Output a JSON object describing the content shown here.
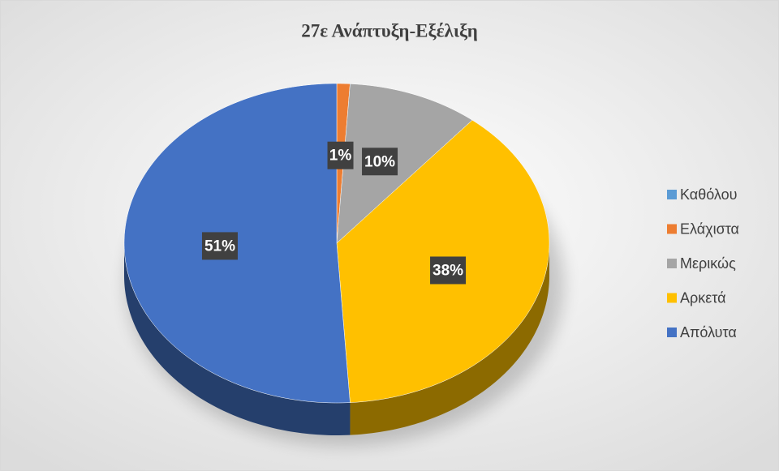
{
  "chart_data": {
    "type": "pie",
    "title": "27ε Ανάπτυξη-Εξέλιξη",
    "categories": [
      "Καθόλου",
      "Ελάχιστα",
      "Μερικώς",
      "Αρκετά",
      "Απόλυτα"
    ],
    "values": [
      0,
      1,
      10,
      38,
      51
    ],
    "value_labels": [
      null,
      "1%",
      "10%",
      "38%",
      "51%"
    ],
    "colors": [
      "#5b9bd5",
      "#ed7d31",
      "#a5a5a5",
      "#ffc000",
      "#4472c4"
    ],
    "legend": "right"
  }
}
